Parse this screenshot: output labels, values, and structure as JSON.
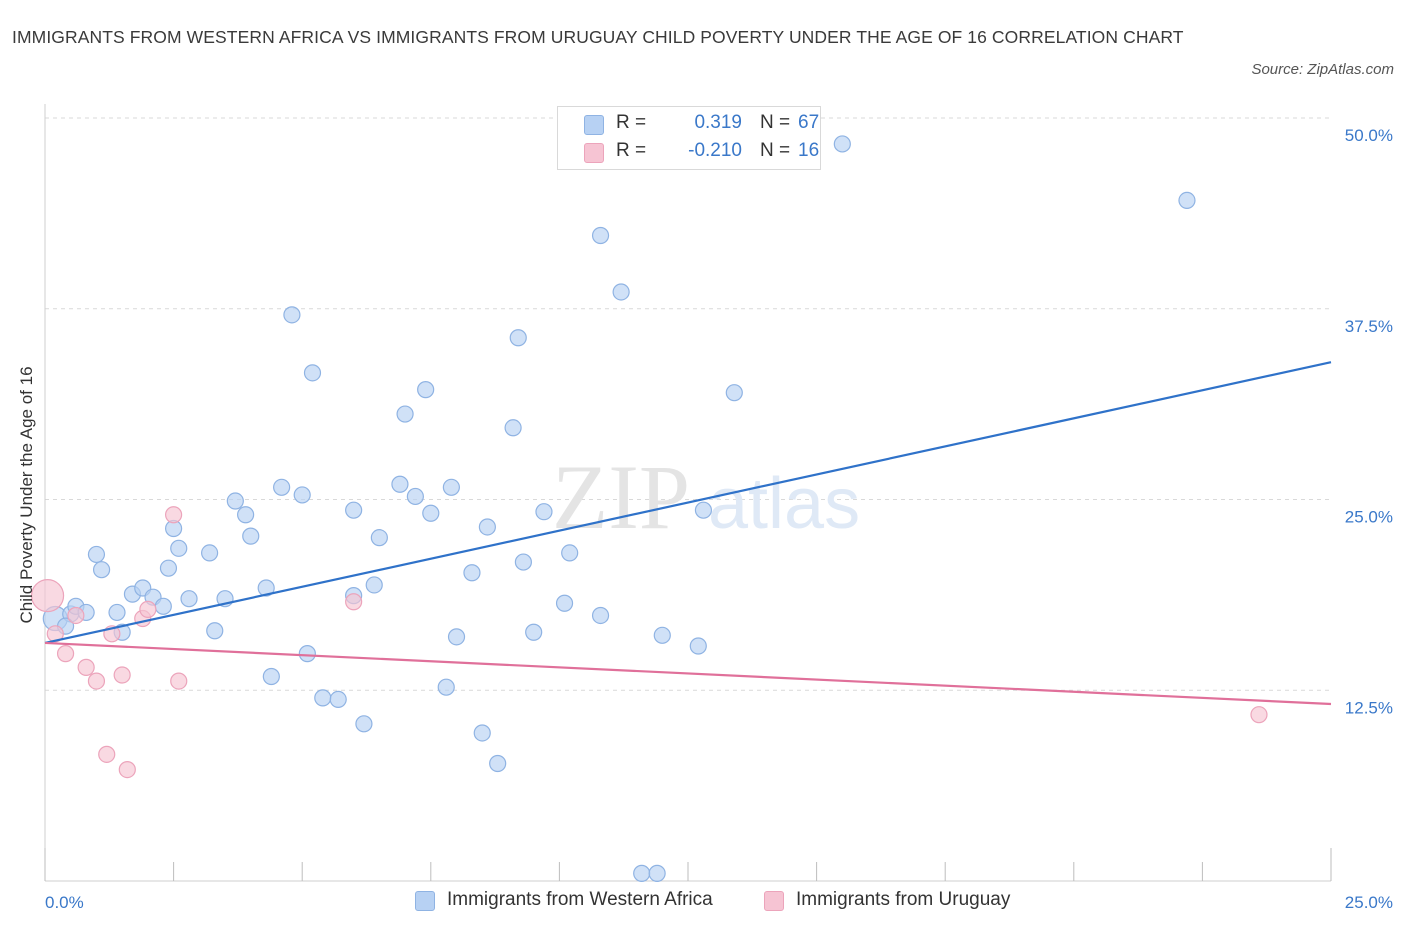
{
  "title": "IMMIGRANTS FROM WESTERN AFRICA VS IMMIGRANTS FROM URUGUAY CHILD POVERTY UNDER THE AGE OF 16 CORRELATION CHART",
  "source": "Source: ZipAtlas.com",
  "watermark": "ZIPatlas",
  "colors": {
    "blue_fill": "#b7d1f3",
    "blue_stroke": "#8fb3e3",
    "blue_line": "#2f72c9",
    "pink_fill": "#f6c4d3",
    "pink_stroke": "#eca4bb",
    "pink_line": "#e0709a",
    "axis_label": "#3a78c9",
    "grid": "#d9d9d9"
  },
  "stats": [
    {
      "label": "R =",
      "r": "0.319",
      "n_label": "N =",
      "n": "67",
      "color": "blue"
    },
    {
      "label": "R =",
      "r": "-0.210",
      "n_label": "N =",
      "n": "16",
      "color": "pink"
    }
  ],
  "legend": [
    {
      "name": "Immigrants from Western Africa",
      "color": "blue"
    },
    {
      "name": "Immigrants from Uruguay",
      "color": "pink"
    }
  ],
  "chart_data": {
    "type": "scatter",
    "title": "IMMIGRANTS FROM WESTERN AFRICA VS IMMIGRANTS FROM URUGUAY CHILD POVERTY UNDER THE AGE OF 16 CORRELATION CHART",
    "xlabel": "",
    "ylabel": "Child Poverty Under the Age of 16",
    "xlim": [
      0,
      25
    ],
    "ylim": [
      0,
      50
    ],
    "x_tick_labels": [
      {
        "value": 0,
        "label": "0.0%"
      },
      {
        "value": 25,
        "label": "25.0%"
      }
    ],
    "y_tick_labels": [
      {
        "value": 50,
        "label": "50.0%"
      },
      {
        "value": 37.5,
        "label": "37.5%"
      },
      {
        "value": 25,
        "label": "25.0%"
      },
      {
        "value": 12.5,
        "label": "12.5%"
      }
    ],
    "grid": true,
    "legend_position": "bottom-center",
    "series": [
      {
        "name": "Immigrants from Western Africa",
        "color": "#b7d1f3",
        "trend": {
          "x": [
            0,
            25
          ],
          "y": [
            15.6,
            34.0
          ]
        },
        "points": [
          [
            0.2,
            17.2
          ],
          [
            0.5,
            17.5
          ],
          [
            0.6,
            18.0
          ],
          [
            0.8,
            17.6
          ],
          [
            1.0,
            21.4
          ],
          [
            1.1,
            20.4
          ],
          [
            1.4,
            17.6
          ],
          [
            1.5,
            16.3
          ],
          [
            1.7,
            18.8
          ],
          [
            1.9,
            19.2
          ],
          [
            2.1,
            18.6
          ],
          [
            2.3,
            18.0
          ],
          [
            2.4,
            20.5
          ],
          [
            2.5,
            23.1
          ],
          [
            2.6,
            21.8
          ],
          [
            2.8,
            18.5
          ],
          [
            3.2,
            21.5
          ],
          [
            3.3,
            16.4
          ],
          [
            3.5,
            18.5
          ],
          [
            3.7,
            24.9
          ],
          [
            3.9,
            24.0
          ],
          [
            4.0,
            22.6
          ],
          [
            4.3,
            19.2
          ],
          [
            4.4,
            13.4
          ],
          [
            4.6,
            25.8
          ],
          [
            4.8,
            37.1
          ],
          [
            5.0,
            25.3
          ],
          [
            5.1,
            14.9
          ],
          [
            5.2,
            33.3
          ],
          [
            5.4,
            12.0
          ],
          [
            5.7,
            11.9
          ],
          [
            6.0,
            24.3
          ],
          [
            6.0,
            18.7
          ],
          [
            6.2,
            10.3
          ],
          [
            6.4,
            19.4
          ],
          [
            6.5,
            22.5
          ],
          [
            6.9,
            26.0
          ],
          [
            7.0,
            30.6
          ],
          [
            7.2,
            25.2
          ],
          [
            7.4,
            32.2
          ],
          [
            7.5,
            24.1
          ],
          [
            7.8,
            12.7
          ],
          [
            7.9,
            25.8
          ],
          [
            8.0,
            16.0
          ],
          [
            8.3,
            20.2
          ],
          [
            8.5,
            9.7
          ],
          [
            8.6,
            23.2
          ],
          [
            8.8,
            7.7
          ],
          [
            9.1,
            29.7
          ],
          [
            9.3,
            20.9
          ],
          [
            9.2,
            35.6
          ],
          [
            9.5,
            16.3
          ],
          [
            9.7,
            24.2
          ],
          [
            10.1,
            18.2
          ],
          [
            10.2,
            21.5
          ],
          [
            10.8,
            17.4
          ],
          [
            10.8,
            42.3
          ],
          [
            11.2,
            38.6
          ],
          [
            11.6,
            0.5
          ],
          [
            11.9,
            0.5
          ],
          [
            12.0,
            16.1
          ],
          [
            12.7,
            15.4
          ],
          [
            12.8,
            24.3
          ],
          [
            13.4,
            32.0
          ],
          [
            15.5,
            48.3
          ],
          [
            22.2,
            44.6
          ],
          [
            0.4,
            16.7
          ]
        ]
      },
      {
        "name": "Immigrants from Uruguay",
        "color": "#f6c4d3",
        "trend": {
          "x": [
            0,
            25
          ],
          "y": [
            15.6,
            11.6
          ]
        },
        "points": [
          [
            0.05,
            18.7
          ],
          [
            0.2,
            16.2
          ],
          [
            0.4,
            14.9
          ],
          [
            0.6,
            17.4
          ],
          [
            0.8,
            14.0
          ],
          [
            1.0,
            13.1
          ],
          [
            1.2,
            8.3
          ],
          [
            1.3,
            16.2
          ],
          [
            1.5,
            13.5
          ],
          [
            1.6,
            7.3
          ],
          [
            1.9,
            17.2
          ],
          [
            2.0,
            17.8
          ],
          [
            2.5,
            24.0
          ],
          [
            2.6,
            13.1
          ],
          [
            6.0,
            18.3
          ],
          [
            23.6,
            10.9
          ]
        ]
      }
    ]
  }
}
